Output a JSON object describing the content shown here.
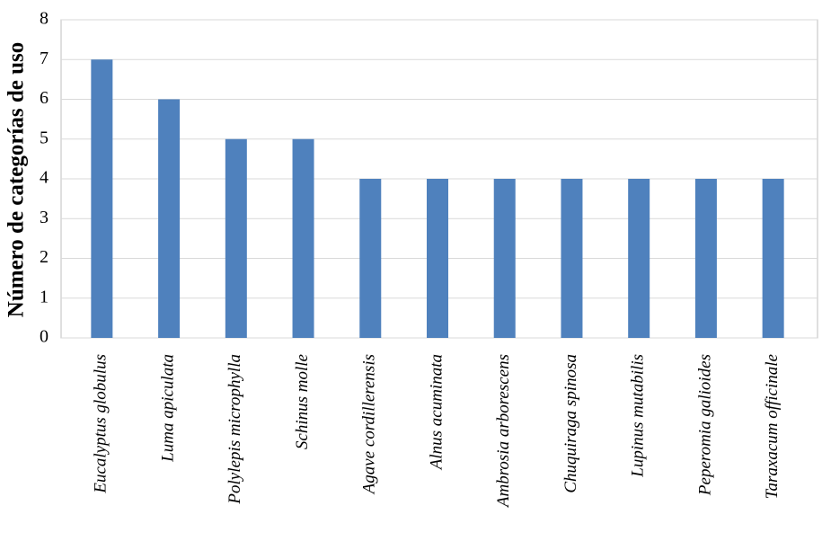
{
  "chart_data": {
    "type": "bar",
    "y_label": "Número de categorías de uso",
    "categories": [
      "Eucalyptus globulus",
      "Luma apiculata",
      "Polylepis microphylla",
      "Schinus molle",
      "Agave cordillerensis",
      "Alnus acuminata",
      "Ambrosia arborescens",
      "Chuquiraga spinosa",
      "Lupinus mutabilis",
      "Peperomia galioides",
      "Taraxacum officinale"
    ],
    "values": [
      7,
      6,
      5,
      5,
      4,
      4,
      4,
      4,
      4,
      4,
      4
    ],
    "color": "#4f81bd",
    "ylim": [
      0,
      8
    ],
    "yticks": [
      0,
      1,
      2,
      3,
      4,
      5,
      6,
      7,
      8
    ],
    "grid": true
  }
}
